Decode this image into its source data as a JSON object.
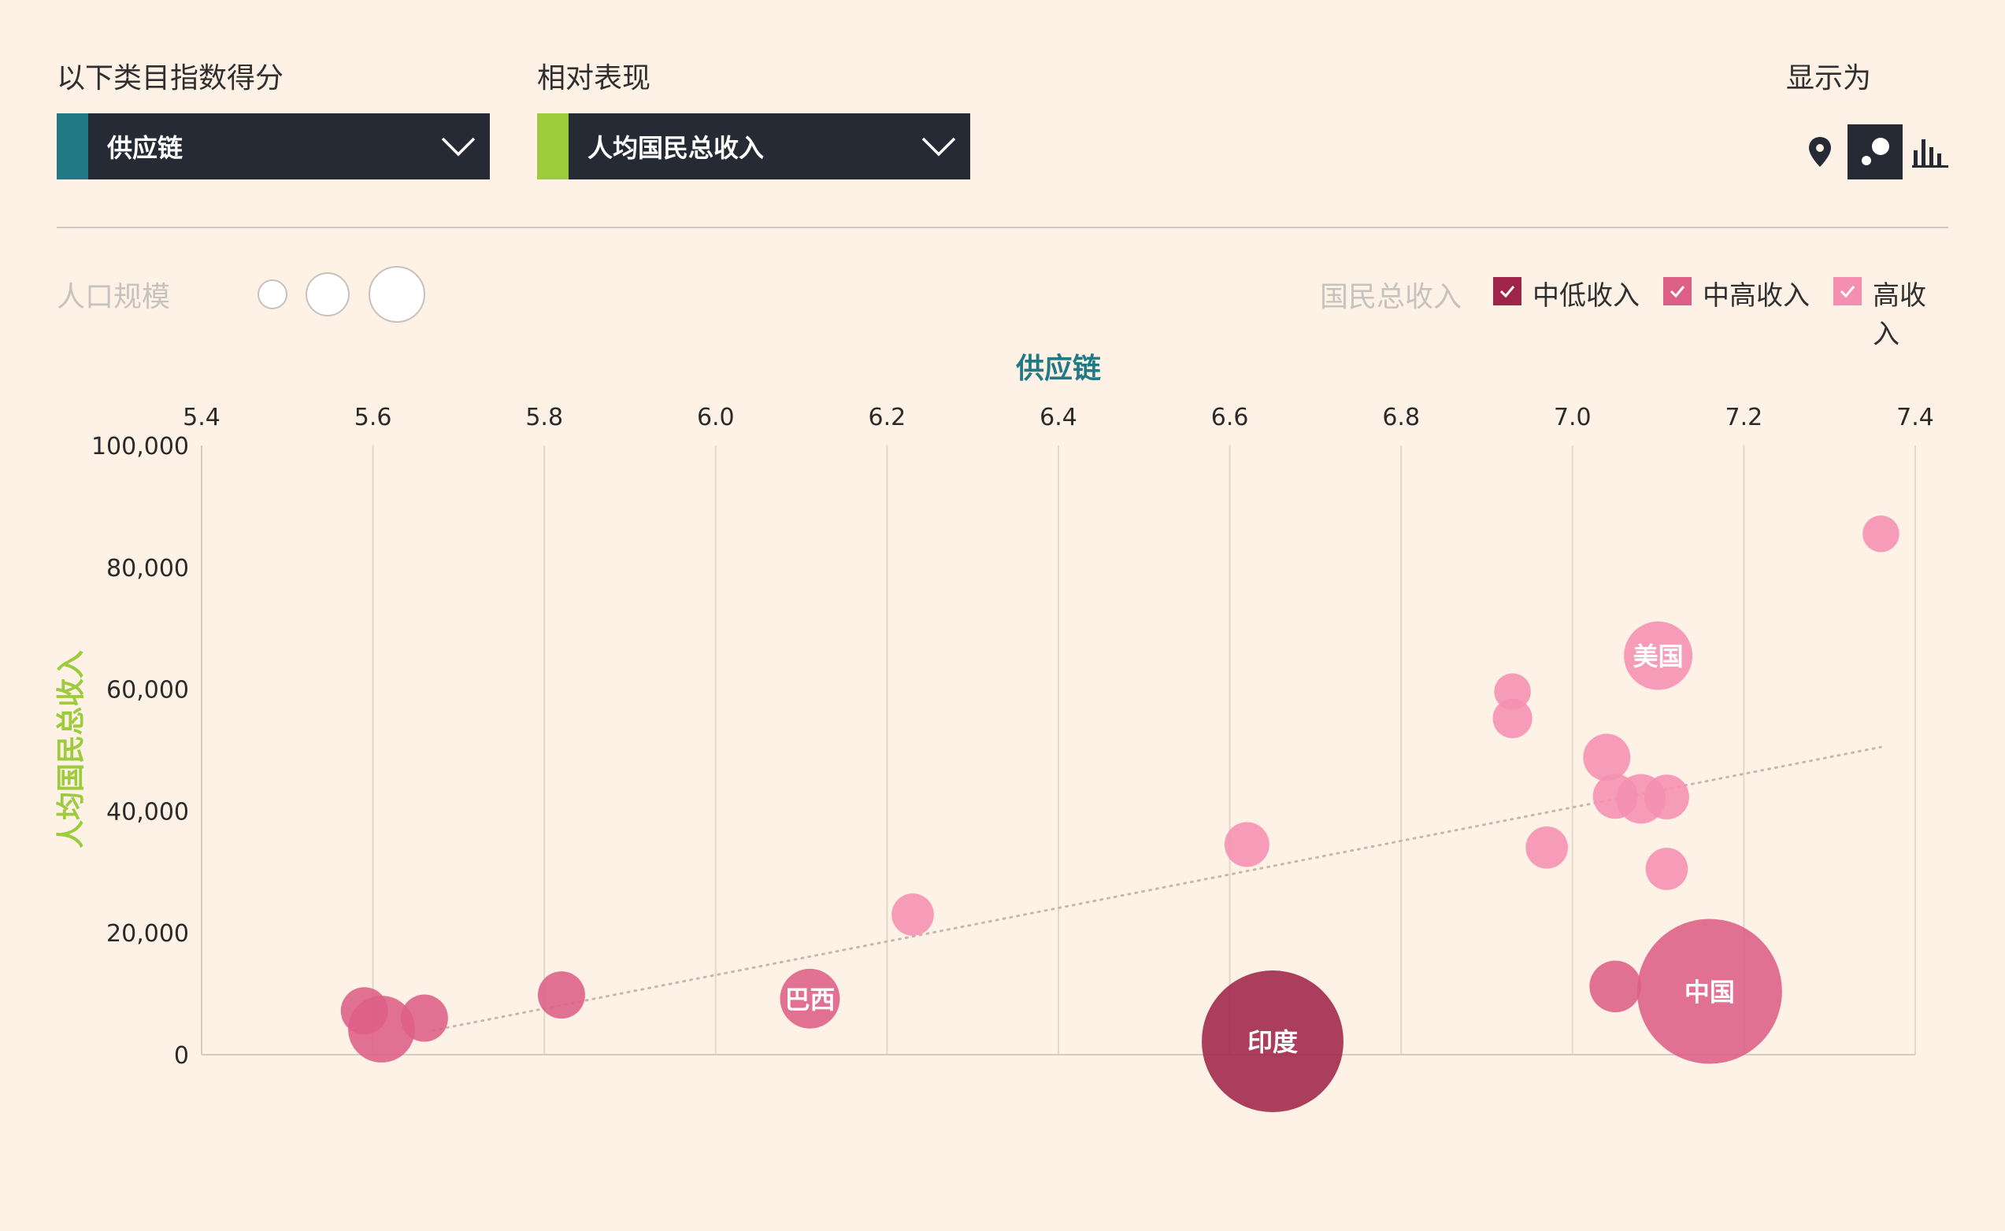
{
  "controls": {
    "category_label": "以下类目指数得分",
    "category_value": "供应链",
    "relative_label": "相对表现",
    "relative_value": "人均国民总收入",
    "display_label": "显示为",
    "view_icons": [
      "map-pin-icon",
      "bubble-chart-icon",
      "bar-chart-icon"
    ]
  },
  "legend": {
    "population_label": "人口规模",
    "gni_label": "国民总收入",
    "items": [
      {
        "label": "中低收入",
        "color": "#9e2449"
      },
      {
        "label": "中高收入",
        "color": "#dd5f87"
      },
      {
        "label": "高收入",
        "color": "#f58fb2"
      }
    ]
  },
  "colors": {
    "background": "#fef1e6",
    "category_accent": "#1f7a86",
    "relative_accent": "#9ccb3b",
    "xlabel_color": "#1f7a86",
    "ylabel_color": "#9ccb3b"
  },
  "chart_data": {
    "type": "scatter",
    "xlabel": "供应链",
    "ylabel": "人均国民总收入",
    "xlim": [
      5.4,
      7.4
    ],
    "ylim": [
      0,
      100000
    ],
    "xticks": [
      "5.4",
      "5.6",
      "5.8",
      "6.0",
      "6.2",
      "6.4",
      "6.6",
      "6.8",
      "7.0",
      "7.2",
      "7.4"
    ],
    "yticks": [
      "0",
      "20,000",
      "40,000",
      "60,000",
      "80,000",
      "100,000"
    ],
    "grid": "vertical",
    "trendline": {
      "x": [
        5.67,
        7.36
      ],
      "y": [
        4000,
        50500
      ]
    },
    "points": [
      {
        "x": 5.59,
        "y": 7200,
        "size": 1,
        "group": "upper-middle"
      },
      {
        "x": 5.61,
        "y": 4200,
        "size": 2,
        "group": "upper-middle"
      },
      {
        "x": 5.66,
        "y": 6000,
        "size": 1,
        "group": "upper-middle"
      },
      {
        "x": 5.82,
        "y": 9800,
        "size": 1,
        "group": "upper-middle"
      },
      {
        "x": 6.11,
        "y": 9200,
        "size": 1.6,
        "group": "upper-middle",
        "label": "巴西"
      },
      {
        "x": 6.23,
        "y": 23000,
        "size": 0.8,
        "group": "high"
      },
      {
        "x": 6.62,
        "y": 34500,
        "size": 0.9,
        "group": "high"
      },
      {
        "x": 6.65,
        "y": 2200,
        "size": 9,
        "group": "lower-middle",
        "label": "印度"
      },
      {
        "x": 6.93,
        "y": 59600,
        "size": 0.6,
        "group": "high"
      },
      {
        "x": 6.93,
        "y": 55200,
        "size": 0.7,
        "group": "high"
      },
      {
        "x": 6.97,
        "y": 34000,
        "size": 0.8,
        "group": "high"
      },
      {
        "x": 7.04,
        "y": 48800,
        "size": 1,
        "group": "high"
      },
      {
        "x": 7.05,
        "y": 42400,
        "size": 0.9,
        "group": "high"
      },
      {
        "x": 7.05,
        "y": 11200,
        "size": 1.2,
        "group": "upper-middle"
      },
      {
        "x": 7.08,
        "y": 42000,
        "size": 1.1,
        "group": "high"
      },
      {
        "x": 7.1,
        "y": 65500,
        "size": 2.1,
        "group": "high",
        "label": "美国"
      },
      {
        "x": 7.11,
        "y": 42300,
        "size": 0.9,
        "group": "high"
      },
      {
        "x": 7.11,
        "y": 30500,
        "size": 0.8,
        "group": "high"
      },
      {
        "x": 7.16,
        "y": 10400,
        "size": 9.4,
        "group": "upper-middle",
        "label": "中国"
      },
      {
        "x": 7.36,
        "y": 85500,
        "size": 0.6,
        "group": "high"
      }
    ]
  }
}
